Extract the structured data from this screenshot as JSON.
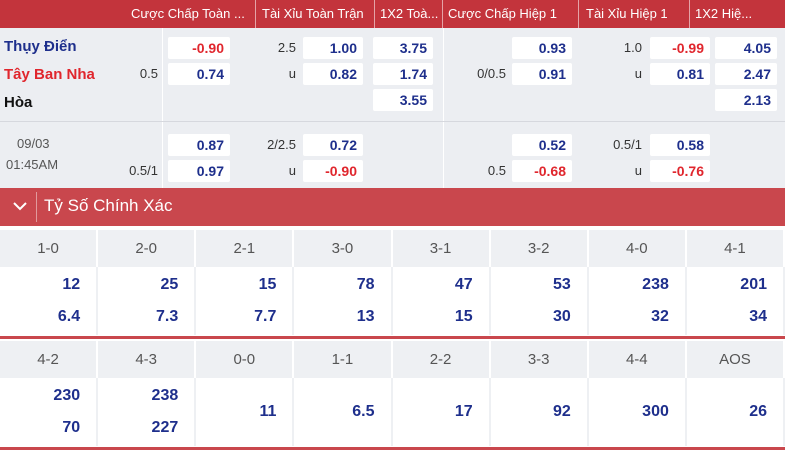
{
  "header": {
    "columns": [
      "Cược Chấp Toàn ...",
      "Tài Xỉu Toàn Trận",
      "1X2 Toà...",
      "Cược Chấp Hiệp 1",
      "Tài Xỉu Hiệp 1",
      "1X2 Hiệ..."
    ]
  },
  "match": {
    "home": "Thụy Điển",
    "away": "Tây Ban Nha",
    "draw": "Hòa",
    "date": "09/03",
    "time": "01:45AM",
    "colors": {
      "home": "#1e2f8c",
      "away": "#e0262d",
      "draw": "#111111"
    }
  },
  "odds_main": {
    "ft_handicap": {
      "home": "-0.90",
      "line": "0.5",
      "away": "0.74"
    },
    "ft_over_under": {
      "line": "2.5",
      "over": "1.00",
      "under_label": "u",
      "under": "0.82"
    },
    "ft_1x2": {
      "home": "3.75",
      "away": "1.74",
      "draw": "3.55"
    },
    "h1_handicap": {
      "home": "0.93",
      "line": "0/0.5",
      "away": "0.91"
    },
    "h1_over_under": {
      "line": "1.0",
      "over": "-0.99",
      "under_label": "u",
      "under": "0.81"
    },
    "h1_1x2": {
      "home": "4.05",
      "away": "2.47",
      "draw": "2.13"
    }
  },
  "odds_alt": {
    "ft_handicap": {
      "home": "0.87",
      "line": "0.5/1",
      "away": "0.97"
    },
    "ft_over_under": {
      "line": "2/2.5",
      "over": "0.72",
      "under_label": "u",
      "under": "-0.90"
    },
    "h1_handicap": {
      "home": "0.52",
      "line": "0.5",
      "away": "-0.68"
    },
    "h1_over_under": {
      "line": "0.5/1",
      "over": "0.58",
      "under_label": "u",
      "under": "-0.76"
    }
  },
  "correct_score": {
    "title": "Tỷ Số Chính Xác",
    "row1": [
      {
        "score": "1-0",
        "home": "12",
        "away": "6.4"
      },
      {
        "score": "2-0",
        "home": "25",
        "away": "7.3"
      },
      {
        "score": "2-1",
        "home": "15",
        "away": "7.7"
      },
      {
        "score": "3-0",
        "home": "78",
        "away": "13"
      },
      {
        "score": "3-1",
        "home": "47",
        "away": "15"
      },
      {
        "score": "3-2",
        "home": "53",
        "away": "30"
      },
      {
        "score": "4-0",
        "home": "238",
        "away": "32"
      },
      {
        "score": "4-1",
        "home": "201",
        "away": "34"
      }
    ],
    "row2": [
      {
        "score": "4-2",
        "home": "230",
        "away": "70"
      },
      {
        "score": "4-3",
        "home": "238",
        "away": "227"
      },
      {
        "score": "0-0",
        "single": "11"
      },
      {
        "score": "1-1",
        "single": "6.5"
      },
      {
        "score": "2-2",
        "single": "17"
      },
      {
        "score": "3-3",
        "single": "92"
      },
      {
        "score": "4-4",
        "single": "300"
      },
      {
        "score": "AOS",
        "single": "26"
      }
    ]
  }
}
